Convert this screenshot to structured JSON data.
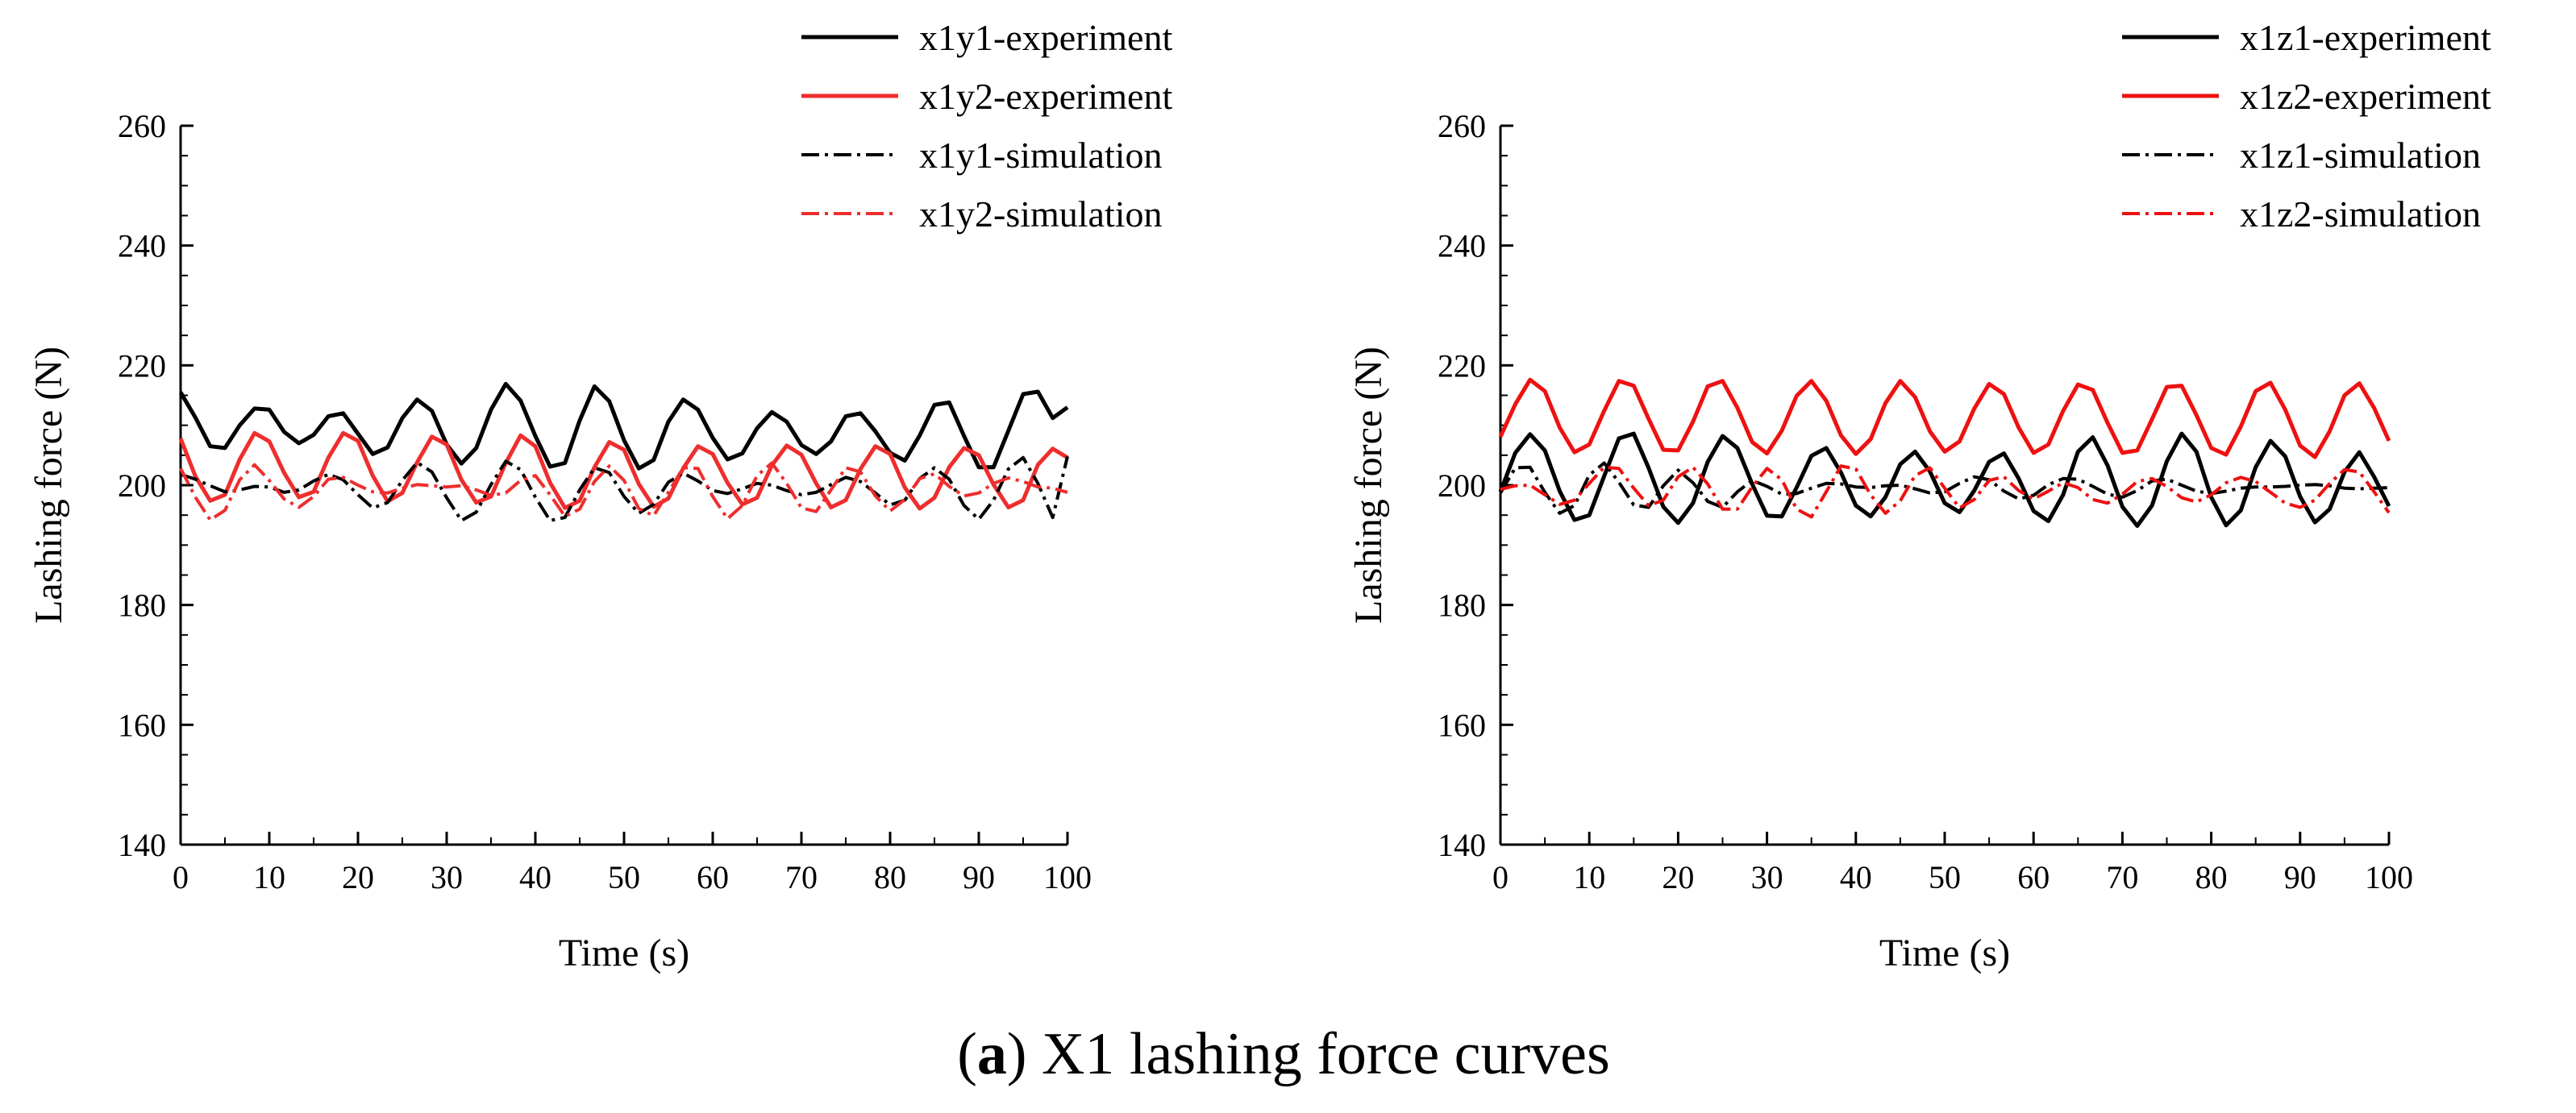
{
  "caption": {
    "prefix": "(",
    "letter": "a",
    "text": ") X1 lashing force curves"
  },
  "chart_data": [
    {
      "type": "line",
      "title": "",
      "xlabel": "Time (s)",
      "ylabel": "Lashing force (N)",
      "xlim": [
        0,
        100
      ],
      "ylim": [
        140,
        260
      ],
      "xticks": [
        0,
        10,
        20,
        30,
        40,
        50,
        60,
        70,
        80,
        90,
        100
      ],
      "yticks": [
        140,
        160,
        180,
        200,
        220,
        240,
        260
      ],
      "x": [
        0,
        1.667,
        3.333,
        5,
        6.667,
        8.333,
        10,
        11.667,
        13.333,
        15,
        16.667,
        18.333,
        20,
        21.667,
        23.333,
        25,
        26.667,
        28.333,
        30,
        31.667,
        33.333,
        35,
        36.667,
        38.333,
        40,
        41.667,
        43.333,
        45,
        46.667,
        48.333,
        50,
        51.667,
        53.333,
        55,
        56.667,
        58.333,
        60,
        61.667,
        63.333,
        65,
        66.667,
        68.333,
        70,
        71.667,
        73.333,
        75,
        76.667,
        78.333,
        80,
        81.667,
        83.333,
        85,
        86.667,
        88.333,
        90,
        91.667,
        93.333,
        95,
        96.667,
        98.333,
        100
      ],
      "legend_position": "top-right",
      "series": [
        {
          "name": "x1y1-experiment",
          "color": "#000000",
          "style": "solid",
          "values": [
            215.5,
            211.3,
            206.5,
            206.2,
            210.0,
            212.8,
            212.6,
            208.9,
            207.0,
            208.4,
            211.5,
            212.0,
            208.6,
            205.2,
            206.3,
            211.2,
            214.3,
            212.4,
            206.8,
            203.6,
            206.2,
            212.6,
            216.9,
            214.1,
            208.2,
            203.1,
            203.7,
            210.8,
            216.5,
            214.0,
            207.5,
            202.8,
            204.2,
            210.6,
            214.3,
            212.6,
            207.9,
            204.3,
            205.3,
            209.5,
            212.2,
            210.6,
            206.7,
            205.2,
            207.3,
            211.5,
            212.0,
            209.0,
            205.4,
            204.1,
            208.3,
            213.4,
            213.8,
            208.2,
            203.0,
            203.0,
            209.1,
            215.2,
            215.6,
            211.2,
            213.0
          ]
        },
        {
          "name": "x1y2-experiment",
          "color": "#ee2e2e",
          "style": "solid",
          "values": [
            207.8,
            201.5,
            197.4,
            198.4,
            204.3,
            208.7,
            207.3,
            202.1,
            198.0,
            198.9,
            204.6,
            208.7,
            207.4,
            201.6,
            197.3,
            198.7,
            203.8,
            208.1,
            206.8,
            200.9,
            197.1,
            198.1,
            203.7,
            208.3,
            206.5,
            200.4,
            196.2,
            197.4,
            203.0,
            207.2,
            205.9,
            200.2,
            196.4,
            197.8,
            202.8,
            206.5,
            205.2,
            200.4,
            196.8,
            197.9,
            203.3,
            206.6,
            205.1,
            200.3,
            196.3,
            197.5,
            202.7,
            206.5,
            205.2,
            199.6,
            196.1,
            197.9,
            203.0,
            206.2,
            205.0,
            200.1,
            196.3,
            197.5,
            203.4,
            206.1,
            204.6
          ]
        },
        {
          "name": "x1y1-simulation",
          "color": "#000000",
          "style": "dashdot",
          "values": [
            201.8,
            201.0,
            199.9,
            198.9,
            199.2,
            199.8,
            199.7,
            198.8,
            199.2,
            200.7,
            201.8,
            200.9,
            198.4,
            196.2,
            197.1,
            200.8,
            203.8,
            202.2,
            197.9,
            194.1,
            195.5,
            200.1,
            204.0,
            202.6,
            198.0,
            194.1,
            194.6,
            199.2,
            202.9,
            202.1,
            198.1,
            195.3,
            196.8,
            200.5,
            202.0,
            200.7,
            199.1,
            198.6,
            199.4,
            200.3,
            200.0,
            199.1,
            198.4,
            198.8,
            200.1,
            201.3,
            200.6,
            198.7,
            196.7,
            197.5,
            201.1,
            202.9,
            201.0,
            196.6,
            194.3,
            197.5,
            202.7,
            204.6,
            200.3,
            194.6,
            204.8
          ]
        },
        {
          "name": "x1y2-simulation",
          "color": "#ee2e2e",
          "style": "dashdot",
          "values": [
            202.8,
            198.0,
            194.2,
            195.8,
            200.9,
            203.4,
            200.8,
            197.7,
            196.3,
            198.1,
            201.0,
            201.3,
            200.0,
            198.9,
            198.7,
            199.5,
            200.1,
            199.9,
            199.7,
            199.9,
            199.2,
            198.3,
            198.7,
            200.8,
            201.6,
            198.4,
            194.8,
            196.0,
            200.6,
            203.2,
            200.8,
            196.1,
            194.9,
            198.8,
            202.9,
            202.8,
            198.1,
            194.4,
            196.6,
            201.6,
            203.7,
            200.3,
            196.2,
            195.6,
            199.2,
            202.9,
            202.2,
            198.2,
            195.7,
            197.6,
            201.1,
            201.9,
            199.8,
            198.2,
            198.7,
            200.3,
            201.2,
            200.6,
            199.7,
            199.5,
            198.8
          ]
        }
      ]
    },
    {
      "type": "line",
      "title": "",
      "xlabel": "Time (s)",
      "ylabel": "Lashing force (N)",
      "xlim": [
        0,
        100
      ],
      "ylim": [
        140,
        260
      ],
      "xticks": [
        0,
        10,
        20,
        30,
        40,
        50,
        60,
        70,
        80,
        90,
        100
      ],
      "yticks": [
        140,
        160,
        180,
        200,
        220,
        240,
        260
      ],
      "x": [
        0,
        1.667,
        3.333,
        5,
        6.667,
        8.333,
        10,
        11.667,
        13.333,
        15,
        16.667,
        18.333,
        20,
        21.667,
        23.333,
        25,
        26.667,
        28.333,
        30,
        31.667,
        33.333,
        35,
        36.667,
        38.333,
        40,
        41.667,
        43.333,
        45,
        46.667,
        48.333,
        50,
        51.667,
        53.333,
        55,
        56.667,
        58.333,
        60,
        61.667,
        63.333,
        65,
        66.667,
        68.333,
        70,
        71.667,
        73.333,
        75,
        76.667,
        78.333,
        80,
        81.667,
        83.333,
        85,
        86.667,
        88.333,
        90,
        91.667,
        93.333,
        95,
        96.667,
        98.333,
        100
      ],
      "legend_position": "top-right",
      "series": [
        {
          "name": "x1z1-experiment",
          "color": "#000000",
          "style": "solid",
          "values": [
            198.9,
            205.4,
            208.5,
            205.8,
            199.0,
            194.2,
            195.0,
            201.5,
            207.8,
            208.6,
            202.9,
            196.4,
            193.7,
            197.0,
            203.9,
            208.2,
            206.2,
            200.2,
            194.9,
            194.8,
            199.6,
            204.9,
            206.2,
            202.1,
            196.6,
            194.8,
            198.0,
            203.5,
            205.6,
            202.3,
            197.0,
            195.5,
            199.1,
            203.9,
            205.3,
            201.1,
            195.7,
            194.0,
            198.4,
            205.6,
            208.0,
            203.3,
            196.4,
            193.2,
            196.6,
            204.0,
            208.6,
            205.6,
            198.0,
            193.3,
            195.8,
            203.0,
            207.4,
            204.8,
            198.1,
            193.8,
            196.0,
            202.2,
            205.5,
            201.4,
            196.5
          ]
        },
        {
          "name": "x1z2-experiment",
          "color": "#ee1111",
          "style": "solid",
          "values": [
            208.1,
            213.5,
            217.6,
            215.7,
            209.6,
            205.5,
            206.8,
            212.4,
            217.4,
            216.6,
            211.1,
            205.9,
            205.8,
            210.6,
            216.5,
            217.4,
            212.9,
            207.2,
            205.3,
            209.1,
            214.9,
            217.4,
            214.1,
            208.3,
            205.2,
            207.7,
            213.7,
            217.4,
            214.7,
            209.0,
            205.6,
            207.3,
            212.8,
            216.9,
            215.2,
            209.6,
            205.4,
            206.8,
            212.4,
            216.8,
            215.9,
            210.4,
            205.4,
            205.8,
            211.0,
            216.4,
            216.6,
            211.7,
            206.2,
            205.1,
            209.8,
            215.7,
            217.1,
            212.6,
            206.6,
            204.7,
            209.0,
            215.0,
            217.0,
            212.9,
            207.4
          ]
        },
        {
          "name": "x1z1-simulation",
          "color": "#000000",
          "style": "dashdot",
          "values": [
            198.7,
            202.9,
            203.0,
            198.8,
            195.3,
            196.6,
            201.7,
            203.7,
            200.5,
            196.7,
            196.3,
            199.9,
            202.5,
            200.4,
            197.3,
            196.3,
            198.9,
            200.8,
            199.8,
            198.5,
            198.6,
            199.5,
            200.3,
            200.2,
            199.7,
            199.6,
            199.9,
            200.0,
            199.4,
            198.7,
            198.9,
            200.3,
            201.4,
            200.9,
            199.0,
            197.7,
            198.3,
            200.1,
            201.1,
            201.0,
            199.8,
            198.5,
            198.0,
            199.1,
            200.7,
            201.0,
            200.0,
            199.0,
            198.6,
            199.0,
            199.5,
            199.7,
            199.7,
            199.8,
            200.0,
            200.1,
            199.9,
            199.5,
            199.4,
            199.5,
            199.6
          ]
        },
        {
          "name": "x1z2-simulation",
          "color": "#ee1111",
          "style": "dashdot",
          "values": [
            199.3,
            199.9,
            200.0,
            198.4,
            196.8,
            197.5,
            200.3,
            203.0,
            202.8,
            199.5,
            196.6,
            197.5,
            201.4,
            203.0,
            200.2,
            196.0,
            196.0,
            199.7,
            202.8,
            200.9,
            196.0,
            194.7,
            198.9,
            203.2,
            202.7,
            198.4,
            195.3,
            197.4,
            201.6,
            202.9,
            199.5,
            196.2,
            197.6,
            200.8,
            201.4,
            199.1,
            197.7,
            199.0,
            200.4,
            199.6,
            197.6,
            197.0,
            198.5,
            200.6,
            201.1,
            199.8,
            197.9,
            197.2,
            198.4,
            200.4,
            201.3,
            200.6,
            198.8,
            197.0,
            196.3,
            197.5,
            200.3,
            202.6,
            202.2,
            198.9,
            195.4
          ]
        }
      ]
    }
  ]
}
